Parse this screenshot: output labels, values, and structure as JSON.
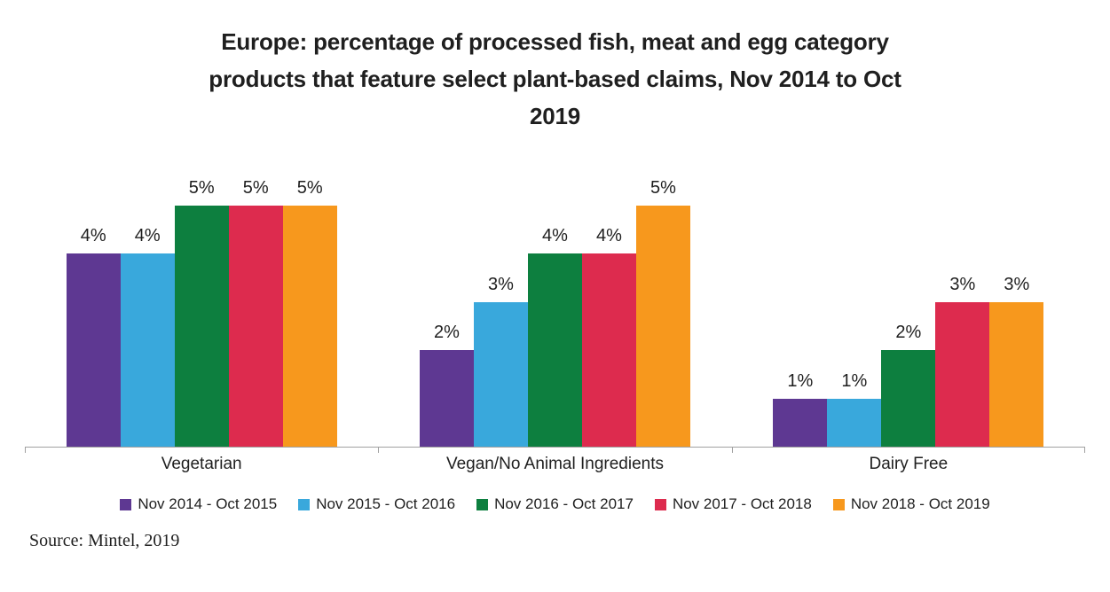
{
  "title_lines": [
    "Europe: percentage of processed fish, meat and egg category",
    "products that feature select plant-based claims, Nov 2014 to Oct",
    "2019"
  ],
  "source": "Source: Mintel, 2019",
  "chart_data": {
    "type": "bar",
    "title": "Europe: percentage of processed fish, meat and egg category products that feature select plant-based claims, Nov 2014 to Oct 2019",
    "categories": [
      "Vegetarian",
      "Vegan/No Animal Ingredients",
      "Dairy Free"
    ],
    "series": [
      {
        "name": "Nov 2014 - Oct 2015",
        "color": "#5e3892",
        "values": [
          4,
          2,
          1
        ]
      },
      {
        "name": "Nov 2015 - Oct 2016",
        "color": "#39a8dc",
        "values": [
          4,
          3,
          1
        ]
      },
      {
        "name": "Nov 2016 - Oct 2017",
        "color": "#0d7f3f",
        "values": [
          5,
          4,
          2
        ]
      },
      {
        "name": "Nov 2017 - Oct 2018",
        "color": "#dd2b4e",
        "values": [
          5,
          4,
          3
        ]
      },
      {
        "name": "Nov 2018 - Oct 2019",
        "color": "#f7981d",
        "values": [
          5,
          5,
          3
        ]
      }
    ],
    "label_format": "{v}%",
    "xlabel": "",
    "ylabel": "",
    "ylim": [
      0,
      6.25
    ],
    "grid": false,
    "legend_position": "bottom",
    "axis_color": "#a0a0a0",
    "data_labels": true
  }
}
